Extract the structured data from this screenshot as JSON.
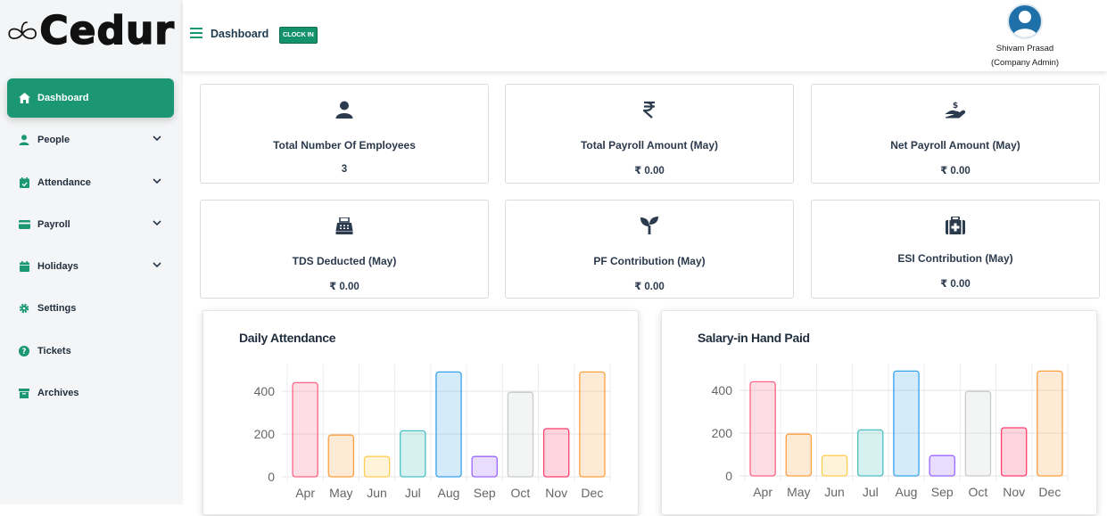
{
  "brand": {
    "logo_text": "Cedur",
    "accent": "#1b9873"
  },
  "sidebar": {
    "items": [
      {
        "label": "Dashboard",
        "icon": "home-icon",
        "active": true,
        "has_children": false
      },
      {
        "label": "People",
        "icon": "user-icon",
        "active": false,
        "has_children": true
      },
      {
        "label": "Attendance",
        "icon": "calendar-check-icon",
        "active": false,
        "has_children": true
      },
      {
        "label": "Payroll",
        "icon": "credit-card-icon",
        "active": false,
        "has_children": true
      },
      {
        "label": "Holidays",
        "icon": "calendar-icon",
        "active": false,
        "has_children": true
      },
      {
        "label": "Settings",
        "icon": "gear-icon",
        "active": false,
        "has_children": false
      },
      {
        "label": "Tickets",
        "icon": "question-icon",
        "active": false,
        "has_children": false
      },
      {
        "label": "Archives",
        "icon": "archive-icon",
        "active": false,
        "has_children": false
      }
    ]
  },
  "header": {
    "title": "Dashboard",
    "clock_in_label": "CLOCK IN",
    "user_name": "Shivam Prasad",
    "user_role": "(Company Admin)"
  },
  "stats": [
    {
      "title": "Total Number Of Employees",
      "value": "3",
      "icon": "user-icon"
    },
    {
      "title": "Total Payroll Amount (May)",
      "value": "₹ 0.00",
      "icon": "rupee-icon"
    },
    {
      "title": "Net Payroll Amount (May)",
      "value": "₹ 0.00",
      "icon": "hand-dollar-icon"
    },
    {
      "title": "TDS Deducted (May)",
      "value": "₹ 0.00",
      "icon": "cash-register-icon"
    },
    {
      "title": "PF Contribution (May)",
      "value": "₹ 0.00",
      "icon": "seedling-icon"
    },
    {
      "title": "ESI Contribution (May)",
      "value": "₹ 0.00",
      "icon": "medical-kit-icon"
    }
  ],
  "chart_data": [
    {
      "type": "bar",
      "title": "Daily Attendance",
      "categories": [
        "Apr",
        "May",
        "Jun",
        "Jul",
        "Aug",
        "Sep",
        "Oct",
        "Nov",
        "Dec"
      ],
      "values": [
        440,
        195,
        95,
        215,
        490,
        95,
        395,
        225,
        490
      ],
      "yticks": [
        0,
        200,
        400
      ],
      "ylim": [
        0,
        500
      ],
      "grid": true,
      "colors": [
        "#ff6384",
        "#ff9f40",
        "#ffcd56",
        "#4bc0c0",
        "#36a2eb",
        "#9966ff",
        "#c9cbcf",
        "#ff3f6c",
        "#ff9f40"
      ]
    },
    {
      "type": "bar",
      "title": "Salary-in Hand Paid",
      "categories": [
        "Apr",
        "May",
        "Jun",
        "Jul",
        "Aug",
        "Sep",
        "Oct",
        "Nov",
        "Dec"
      ],
      "values": [
        440,
        195,
        95,
        215,
        490,
        95,
        395,
        225,
        490
      ],
      "yticks": [
        0,
        200,
        400
      ],
      "ylim": [
        0,
        500
      ],
      "grid": true,
      "colors": [
        "#ff6384",
        "#ff9f40",
        "#ffcd56",
        "#4bc0c0",
        "#36a2eb",
        "#9966ff",
        "#c9cbcf",
        "#ff3f6c",
        "#ff9f40"
      ]
    }
  ]
}
